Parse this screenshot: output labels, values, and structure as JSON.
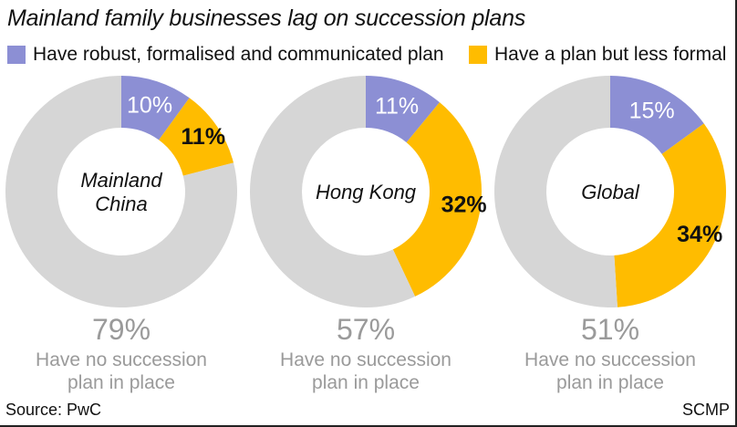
{
  "title": "Mainland family businesses lag on succession plans",
  "source": "Source: PwC",
  "credit": "SCMP",
  "legend": [
    {
      "label": "Have robust, formalised and communicated plan",
      "color": "#8c8fd4"
    },
    {
      "label": "Have a plan but less formal",
      "color": "#ffbc00"
    }
  ],
  "colors": {
    "robust": "#8c8fd4",
    "less_formal": "#ffbc00",
    "none": "#d6d6d6",
    "big_text": "#9a9a9a",
    "label_text": "#111111"
  },
  "chart_data": [
    {
      "type": "pie",
      "center_label": [
        "Mainland",
        "China"
      ],
      "categories": [
        "Have robust, formalised and communicated plan",
        "Have a plan but less formal",
        "Have no succession plan in place"
      ],
      "values": [
        10,
        11,
        79
      ],
      "labels": [
        "10%",
        "11%",
        "79%"
      ],
      "caption": [
        "Have no succession",
        "plan in place"
      ]
    },
    {
      "type": "pie",
      "center_label": [
        "Hong Kong"
      ],
      "categories": [
        "Have robust, formalised and communicated plan",
        "Have a plan but less formal",
        "Have no succession plan in place"
      ],
      "values": [
        11,
        32,
        57
      ],
      "labels": [
        "11%",
        "32%",
        "57%"
      ],
      "caption": [
        "Have no succession",
        "plan in place"
      ]
    },
    {
      "type": "pie",
      "center_label": [
        "Global"
      ],
      "categories": [
        "Have robust, formalised and communicated plan",
        "Have a plan but less formal",
        "Have no succession plan in place"
      ],
      "values": [
        15,
        34,
        51
      ],
      "labels": [
        "15%",
        "34%",
        "51%"
      ],
      "caption": [
        "Have no succession",
        "plan in place"
      ]
    }
  ]
}
